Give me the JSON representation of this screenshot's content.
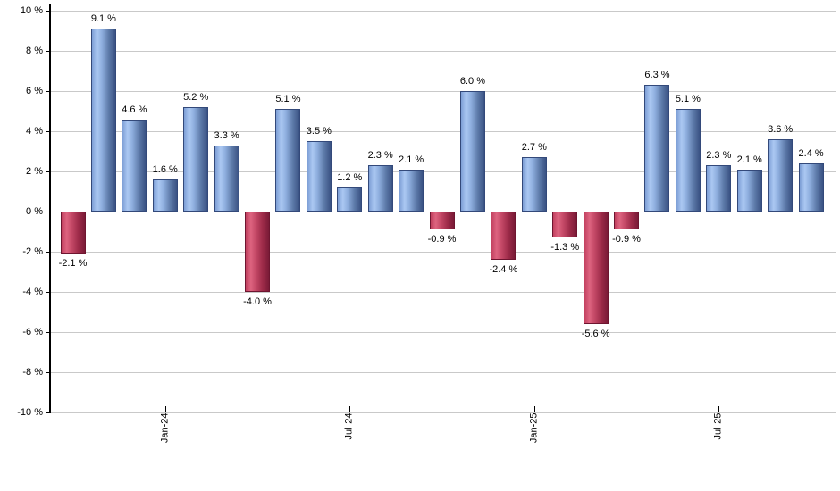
{
  "page": {
    "background": "#ffffff"
  },
  "chart_data": {
    "type": "bar",
    "title": "",
    "xlabel": "",
    "ylabel": "",
    "ylim": [
      -10,
      10
    ],
    "grid": true,
    "values": [
      -2.1,
      9.1,
      4.6,
      1.6,
      5.2,
      3.3,
      -4.0,
      5.1,
      3.5,
      1.2,
      2.3,
      2.1,
      -0.9,
      6.0,
      -2.4,
      2.7,
      -1.3,
      -5.6,
      -0.9,
      6.3,
      5.1,
      2.3,
      2.1,
      3.6,
      2.4
    ],
    "bar_labels": [
      "-2.1 %",
      "9.1 %",
      "4.6 %",
      "1.6 %",
      "5.2 %",
      "3.3 %",
      "-4.0 %",
      "5.1 %",
      "3.5 %",
      "1.2 %",
      "2.3 %",
      "2.1 %",
      "-0.9 %",
      "6.0 %",
      "-2.4 %",
      "2.7 %",
      "-1.3 %",
      "-5.6 %",
      "-0.9 %",
      "6.3 %",
      "5.1 %",
      "2.3 %",
      "2.1 %",
      "3.6 %",
      "2.4 %"
    ],
    "y_axis_ticks": [
      {
        "value": 10,
        "label": "10 %"
      },
      {
        "value": 8,
        "label": "8 %"
      },
      {
        "value": 6,
        "label": "6 %"
      },
      {
        "value": 4,
        "label": "4 %"
      },
      {
        "value": 2,
        "label": "2 %"
      },
      {
        "value": 0,
        "label": "0 %"
      },
      {
        "value": -2,
        "label": "-2 %"
      },
      {
        "value": -4,
        "label": "-4 %"
      },
      {
        "value": -6,
        "label": "-6 %"
      },
      {
        "value": -8,
        "label": "-8 %"
      },
      {
        "value": -10,
        "label": "-10 %"
      }
    ],
    "x_axis_ticks": [
      {
        "bar_index": 3,
        "label": "Jan-24"
      },
      {
        "bar_index": 9,
        "label": "Jul-24"
      },
      {
        "bar_index": 15,
        "label": "Jan-25"
      },
      {
        "bar_index": 21,
        "label": "Jul-25"
      }
    ],
    "colors": {
      "positive_gradient": [
        "#7d9ed5",
        "#abc8f2",
        "#8fafdf",
        "#5d7aa9",
        "#3a5283"
      ],
      "negative_gradient": [
        "#c2415f",
        "#dd6480",
        "#c64a68",
        "#9e2b49",
        "#7a1b37"
      ],
      "positive_border": "#33497a",
      "negative_border": "#6e1530",
      "gridline": "#c9c9c9",
      "axis": "#000000",
      "text": "#000000"
    },
    "legend": null
  }
}
